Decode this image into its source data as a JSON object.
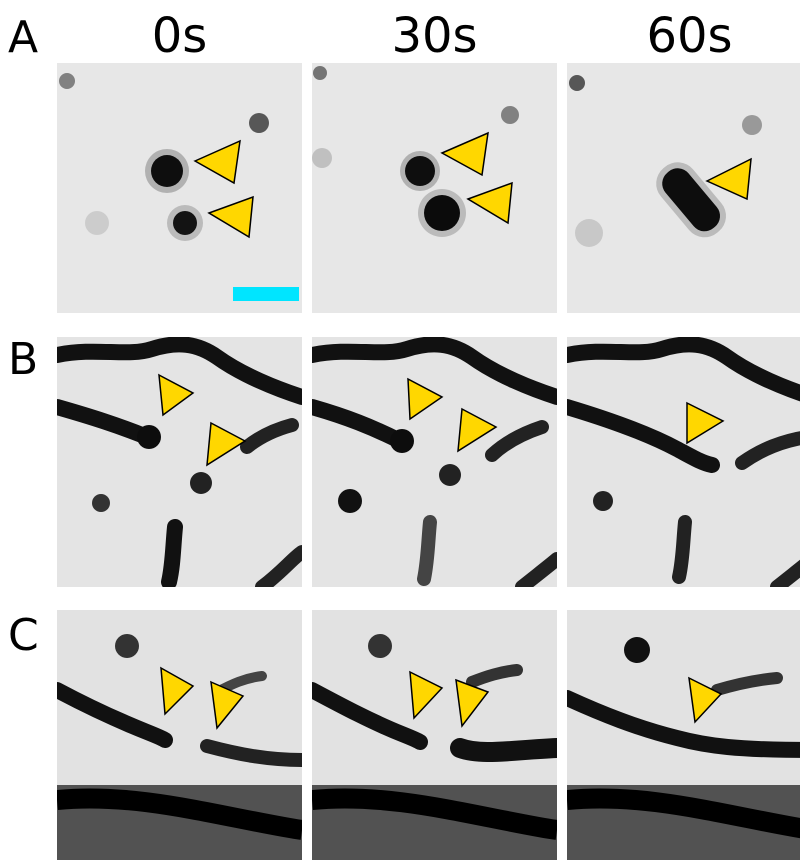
{
  "figure": {
    "time_labels": [
      "0s",
      "30s",
      "60s"
    ],
    "row_labels": [
      "A",
      "B",
      "C"
    ]
  },
  "colors": {
    "arrowhead": "#ffd700",
    "scale_bar": "#00e5ff",
    "background": "#ffffff",
    "stain": "#111111"
  },
  "icons": {
    "arrowhead": "yellow-triangle-arrowhead-icon"
  }
}
